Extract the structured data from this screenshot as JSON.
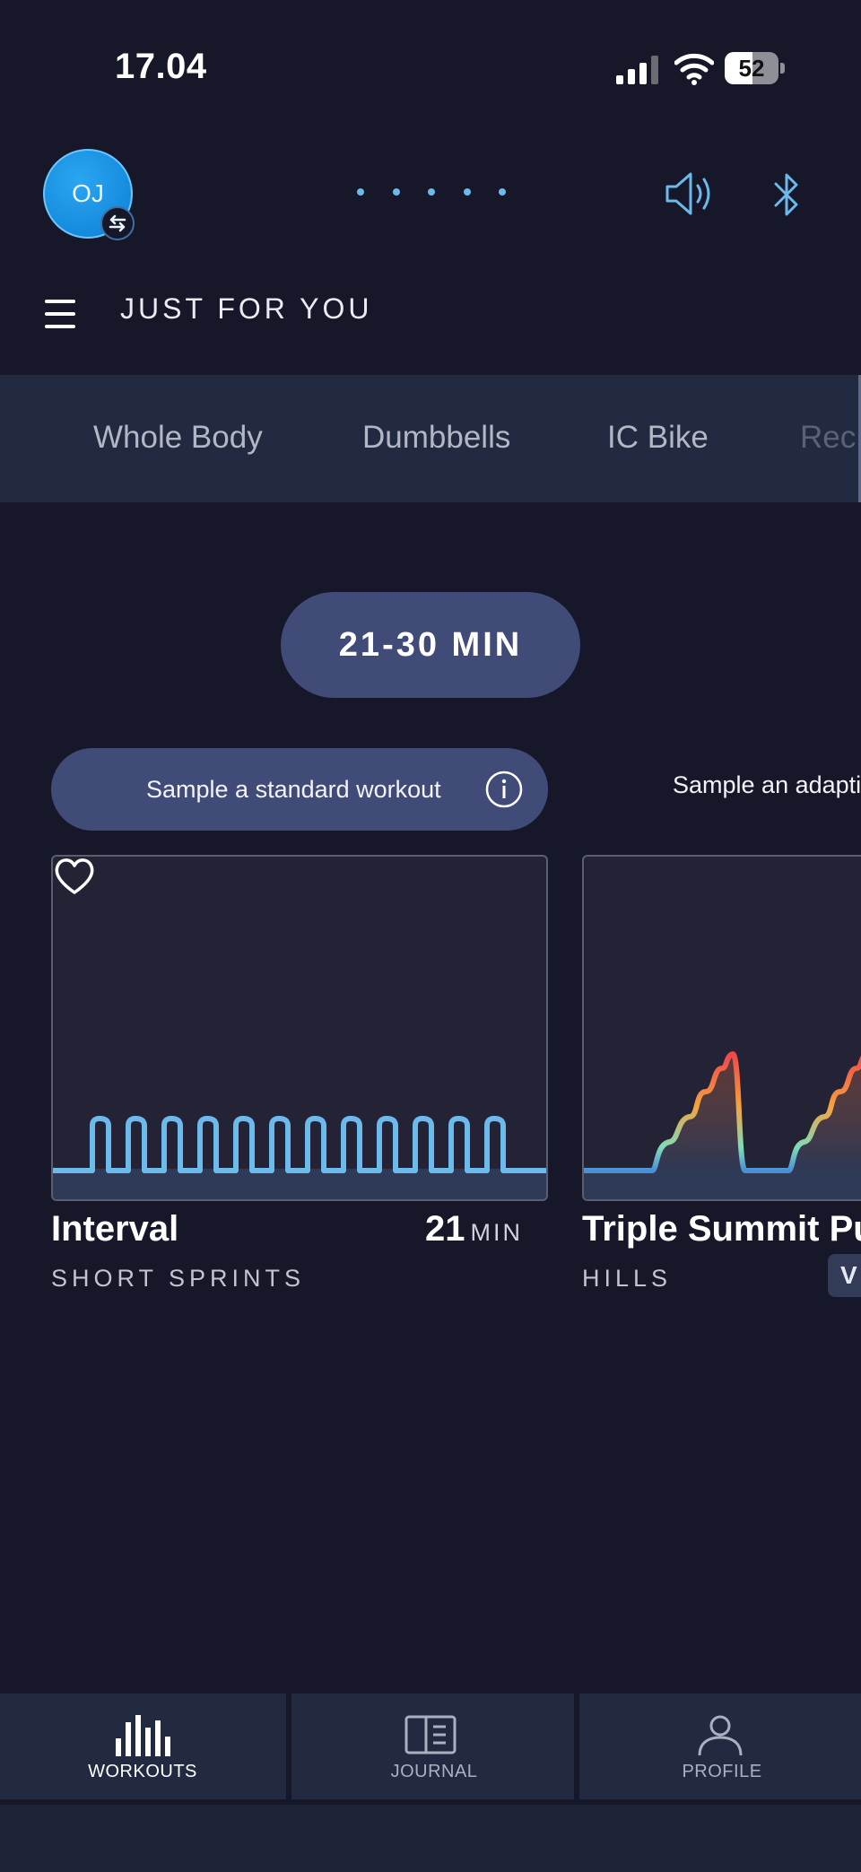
{
  "status_bar": {
    "time": "17.04",
    "battery_level": "52"
  },
  "header": {
    "avatar_initials": "OJ",
    "page_indicator_count": 5,
    "section_title": "JUST FOR YOU"
  },
  "tabs": [
    {
      "label": "Whole Body"
    },
    {
      "label": "Dumbbells"
    },
    {
      "label": "IC Bike"
    },
    {
      "label": "Rec"
    }
  ],
  "duration_filter": "21-30 MIN",
  "sample_buttons": {
    "standard": "Sample a standard workout",
    "adaptive": "Sample an adapti"
  },
  "workouts": [
    {
      "title": "Interval",
      "subtitle": "SHORT SPRINTS",
      "duration_value": "21",
      "duration_unit": "MIN",
      "favorite": false
    },
    {
      "title": "Triple Summit Pu",
      "subtitle": "HILLS",
      "badge": "V"
    }
  ],
  "bottom_nav": [
    {
      "label": "WORKOUTS",
      "active": true
    },
    {
      "label": "JOURNAL",
      "active": false
    },
    {
      "label": "PROFILE",
      "active": false
    }
  ],
  "colors": {
    "background": "#17172a",
    "tab_bar": "#212a40",
    "pill": "#414b77",
    "accent_blue": "#6cb9ec",
    "profile_red": "#f0474d",
    "profile_orange": "#f5a33c",
    "profile_green": "#7fdcb8"
  },
  "icons": [
    "signal-icon",
    "wifi-icon",
    "battery-icon",
    "swap-icon",
    "speaker-icon",
    "bluetooth-icon",
    "menu-icon",
    "info-icon",
    "heart-icon",
    "workouts-icon",
    "journal-icon",
    "profile-icon"
  ]
}
